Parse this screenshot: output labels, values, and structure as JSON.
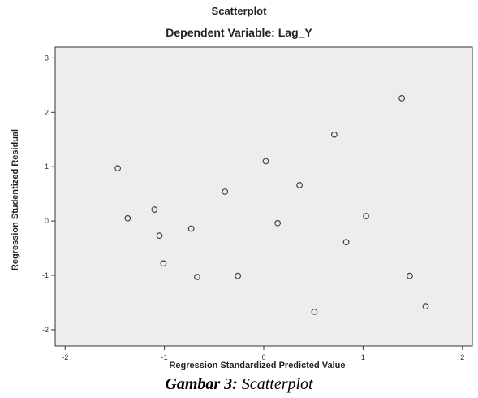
{
  "chart_data": {
    "type": "scatter",
    "title": "Scatterplot",
    "subtitle": "Dependent Variable: Lag_Y",
    "xlabel": "Regression Standardized Predicted Value",
    "ylabel": "Regression Studentized Residual",
    "xlim": [
      -2.1,
      2.1
    ],
    "ylim": [
      -2.3,
      3.2
    ],
    "xticks": [
      "-2",
      "-1",
      "0",
      "1",
      "2"
    ],
    "yticks": [
      "-2",
      "-1",
      "0",
      "1",
      "2",
      "3"
    ],
    "grid": false,
    "marker": "open-circle",
    "colors": {
      "plot_background": "#ededed",
      "marker": "#444444",
      "axis": "#333333"
    },
    "points": [
      {
        "x": -1.47,
        "y": 0.97
      },
      {
        "x": -1.37,
        "y": 0.05
      },
      {
        "x": -1.1,
        "y": 0.21
      },
      {
        "x": -1.05,
        "y": -0.27
      },
      {
        "x": -1.01,
        "y": -0.78
      },
      {
        "x": -0.73,
        "y": -0.14
      },
      {
        "x": -0.67,
        "y": -1.03
      },
      {
        "x": -0.39,
        "y": 0.54
      },
      {
        "x": -0.26,
        "y": -1.01
      },
      {
        "x": 0.02,
        "y": 1.1
      },
      {
        "x": 0.14,
        "y": -0.04
      },
      {
        "x": 0.36,
        "y": 0.66
      },
      {
        "x": 0.51,
        "y": -1.67
      },
      {
        "x": 0.71,
        "y": 1.59
      },
      {
        "x": 0.83,
        "y": -0.39
      },
      {
        "x": 1.03,
        "y": 0.09
      },
      {
        "x": 1.39,
        "y": 2.26
      },
      {
        "x": 1.47,
        "y": -1.01
      },
      {
        "x": 1.63,
        "y": -1.57
      }
    ]
  },
  "caption": {
    "lead": "Gambar 3:",
    "rest": "Scatterplot"
  }
}
